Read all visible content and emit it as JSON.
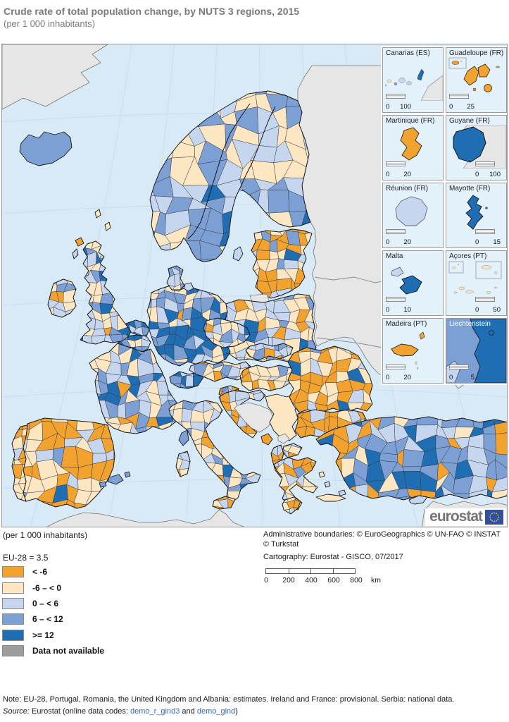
{
  "header": {
    "title": "Crude rate of total population change, by NUTS 3 regions, 2015",
    "subtitle": "(per 1 000 inhabitants)"
  },
  "legend": {
    "unit_label": "(per 1 000 inhabitants)",
    "reference_label": "EU-28 = 3.5",
    "classes": [
      {
        "key": "orange",
        "label": "< -6",
        "color": "#F2A22E"
      },
      {
        "key": "cream",
        "label": "-6 – < 0",
        "color": "#FCE7C2"
      },
      {
        "key": "light",
        "label": "0 – < 6",
        "color": "#C6D6EE"
      },
      {
        "key": "medium",
        "label": "6 – < 12",
        "color": "#7CA0D4"
      },
      {
        "key": "dark",
        "label": ">= 12",
        "color": "#1F6EB4"
      },
      {
        "key": "nodata",
        "label": "Data not available",
        "color": "#9D9D9D"
      }
    ]
  },
  "map": {
    "sea_color": "#D8EAF6",
    "graticule_color": "#C5DBEC",
    "noneu_land_color": "#E6E6E6",
    "region_border_color": "#3A3A44",
    "country_border_color": "#16161D",
    "class_colors": {
      "orange": "#F2A22E",
      "cream": "#FCE7C2",
      "light": "#C6D6EE",
      "medium": "#7CA0D4",
      "dark": "#1F6EB4"
    },
    "country_mixes": {
      "scandinavia": {
        "light": 0.34,
        "medium": 0.34,
        "cream": 0.17,
        "dark": 0.12,
        "orange": 0.03
      },
      "scandinavia_north": {
        "cream": 0.55,
        "light": 0.28,
        "medium": 0.15,
        "orange": 0.02
      },
      "baltics": {
        "orange": 0.55,
        "cream": 0.25,
        "light": 0.1,
        "medium": 0.06,
        "dark": 0.04
      },
      "poland": {
        "cream": 0.54,
        "light": 0.2,
        "medium": 0.1,
        "orange": 0.09,
        "dark": 0.07
      },
      "germany": {
        "cream": 0.27,
        "light": 0.24,
        "medium": 0.24,
        "dark": 0.2,
        "orange": 0.05
      },
      "germany_south": {
        "dark": 0.55,
        "medium": 0.25,
        "light": 0.12,
        "cream": 0.08
      },
      "benelux": {
        "dark": 0.34,
        "medium": 0.28,
        "light": 0.22,
        "cream": 0.14,
        "orange": 0.02
      },
      "denmark": {
        "light": 0.45,
        "medium": 0.3,
        "cream": 0.2,
        "dark": 0.05
      },
      "uk": {
        "medium": 0.3,
        "light": 0.25,
        "cream": 0.25,
        "dark": 0.13,
        "orange": 0.07
      },
      "ireland": {
        "light": 0.45,
        "cream": 0.33,
        "medium": 0.18,
        "orange": 0.04
      },
      "france": {
        "light": 0.32,
        "medium": 0.28,
        "cream": 0.24,
        "dark": 0.11,
        "orange": 0.05
      },
      "spain": {
        "orange": 0.48,
        "cream": 0.3,
        "light": 0.13,
        "medium": 0.07,
        "dark": 0.02
      },
      "portugal": {
        "orange": 0.56,
        "cream": 0.32,
        "light": 0.1,
        "dark": 0.02
      },
      "italy": {
        "cream": 0.48,
        "light": 0.24,
        "orange": 0.15,
        "medium": 0.1,
        "dark": 0.03
      },
      "switzerland": {
        "medium": 0.45,
        "dark": 0.3,
        "light": 0.2,
        "cream": 0.05
      },
      "austria": {
        "cream": 0.3,
        "light": 0.25,
        "medium": 0.25,
        "dark": 0.15,
        "orange": 0.05
      },
      "czechia": {
        "cream": 0.35,
        "light": 0.3,
        "medium": 0.2,
        "dark": 0.1,
        "orange": 0.05
      },
      "slovakia": {
        "cream": 0.45,
        "light": 0.25,
        "medium": 0.15,
        "orange": 0.1,
        "dark": 0.05
      },
      "hungary": {
        "cream": 0.5,
        "orange": 0.25,
        "light": 0.17,
        "medium": 0.08
      },
      "romania": {
        "orange": 0.52,
        "cream": 0.28,
        "light": 0.1,
        "medium": 0.06,
        "dark": 0.04
      },
      "bulgaria": {
        "orange": 0.62,
        "cream": 0.22,
        "light": 0.1,
        "medium": 0.04,
        "dark": 0.02
      },
      "greece": {
        "orange": 0.45,
        "cream": 0.38,
        "light": 0.13,
        "medium": 0.04
      },
      "croatia": {
        "orange": 0.38,
        "cream": 0.3,
        "light": 0.27,
        "medium": 0.05
      },
      "albania": {
        "orange": 0.5,
        "cream": 0.28,
        "light": 0.18,
        "medium": 0.04
      },
      "turkey": {
        "medium": 0.36,
        "dark": 0.27,
        "light": 0.15,
        "orange": 0.15,
        "cream": 0.07
      }
    }
  },
  "insets": [
    {
      "title": "Canarias (ES)",
      "scale_start": "0",
      "scale_end": "100",
      "scale_align": "left"
    },
    {
      "title": "Guadeloupe (FR)",
      "scale_start": "0",
      "scale_end": "25",
      "scale_align": "left"
    },
    {
      "title": "Martinique (FR)",
      "scale_start": "0",
      "scale_end": "20",
      "scale_align": "left"
    },
    {
      "title": "Guyane (FR)",
      "scale_start": "0",
      "scale_end": "100",
      "scale_align": "right"
    },
    {
      "title": "Réunion (FR)",
      "scale_start": "0",
      "scale_end": "20",
      "scale_align": "left"
    },
    {
      "title": "Mayotte (FR)",
      "scale_start": "0",
      "scale_end": "15",
      "scale_align": "right"
    },
    {
      "title": "Malta",
      "scale_start": "0",
      "scale_end": "10",
      "scale_align": "left"
    },
    {
      "title": "Açores (PT)",
      "scale_start": "0",
      "scale_end": "50",
      "scale_align": "right"
    },
    {
      "title": "Madeira (PT)",
      "scale_start": "0",
      "scale_end": "20",
      "scale_align": "left"
    },
    {
      "title": "Liechtenstein",
      "scale_start": "0",
      "scale_end": "5",
      "scale_align": "left"
    }
  ],
  "credits": {
    "line1": "Administrative boundaries: © EuroGeographics © UN-FAO © INSTAT",
    "line2": "© Turkstat",
    "line3": "Cartography: Eurostat - GISCO, 07/2017"
  },
  "scalebar": {
    "labels": [
      "0",
      "200",
      "400",
      "600",
      "800"
    ],
    "unit": "km"
  },
  "logo": {
    "text": "eurostat"
  },
  "footer": {
    "note": "Note: EU-28, Portugal, Romania, the United Kingdom and Albania: estimates. Ireland and France: provisional. Serbia: national data.",
    "source_prefix": "Source:",
    "source_mid": " Eurostat (online data codes: ",
    "link1": "demo_r_gind3",
    "source_and": " and ",
    "link2": "demo_gind",
    "source_end": ")"
  },
  "regions_overview": [
    {
      "region": "Iceland",
      "dominant_class": "6 – < 12"
    },
    {
      "region": "Interior Spain and Portugal",
      "dominant_class": "< -6"
    },
    {
      "region": "Southern Germany / Benelux",
      "dominant_class": ">= 12"
    },
    {
      "region": "Baltic states",
      "dominant_class": "< -6"
    },
    {
      "region": "Romania and Bulgaria",
      "dominant_class": "< -6"
    },
    {
      "region": "Greece",
      "dominant_class": "< -6 / -6 – < 0"
    },
    {
      "region": "Turkey",
      "dominant_class": "6 – < 12 / >= 12"
    },
    {
      "region": "Poland",
      "dominant_class": "-6 – < 0"
    },
    {
      "region": "Serbia",
      "dominant_class": "-6 – < 0 (national data)"
    },
    {
      "region": "Bosnia, Kosovo, non-EU east",
      "dominant_class": "Data not available"
    }
  ]
}
